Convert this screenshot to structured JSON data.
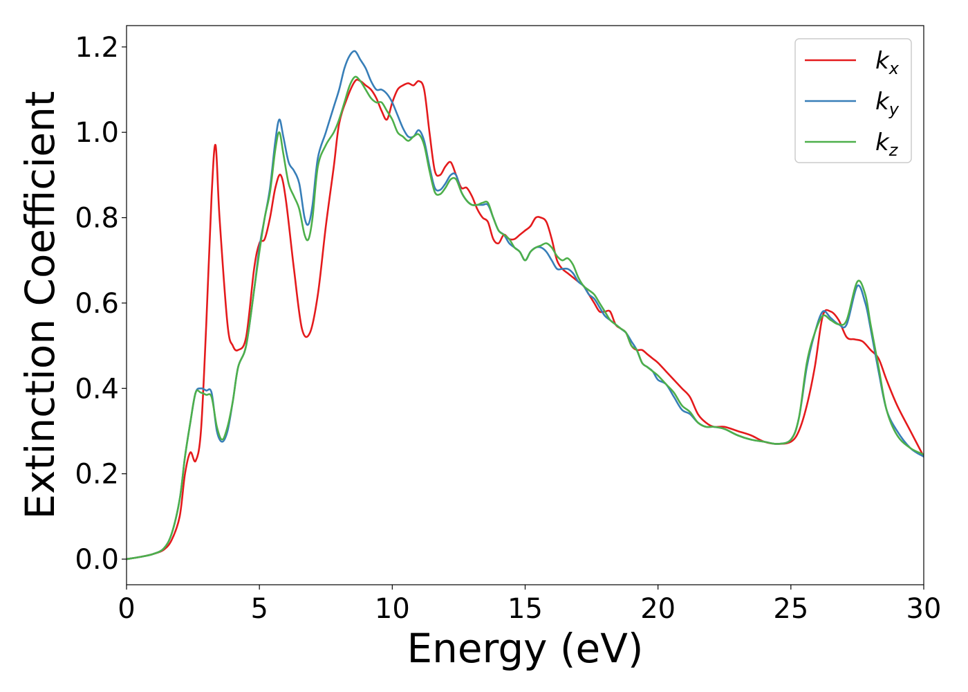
{
  "chart_data": {
    "type": "line",
    "xlabel": "Energy (eV)",
    "ylabel": "Extinction Coefficient",
    "xlim": [
      0,
      30
    ],
    "ylim": [
      -0.06,
      1.25
    ],
    "xticks": [
      0,
      5,
      10,
      15,
      20,
      25,
      30
    ],
    "yticks": [
      0.0,
      0.2,
      0.4,
      0.6,
      0.8,
      1.0,
      1.2
    ],
    "xtick_labels": [
      "0",
      "5",
      "10",
      "15",
      "20",
      "25",
      "30"
    ],
    "ytick_labels": [
      "0.0",
      "0.2",
      "0.4",
      "0.6",
      "0.8",
      "1.0",
      "1.2"
    ],
    "grid": false,
    "legend_position": "top-right",
    "series": [
      {
        "name": "k_x",
        "label_base": "k",
        "label_sub": "x",
        "color": "#e41a1c",
        "x": [
          0,
          0.5,
          1,
          1.4,
          1.7,
          2,
          2.2,
          2.4,
          2.6,
          2.8,
          3,
          3.2,
          3.35,
          3.5,
          3.8,
          4,
          4.2,
          4.5,
          4.8,
          5,
          5.2,
          5.4,
          5.6,
          5.8,
          6,
          6.3,
          6.6,
          6.9,
          7.2,
          7.5,
          7.8,
          8,
          8.3,
          8.6,
          8.8,
          9,
          9.2,
          9.4,
          9.6,
          9.8,
          10,
          10.2,
          10.4,
          10.6,
          10.8,
          11,
          11.2,
          11.4,
          11.6,
          11.8,
          12,
          12.2,
          12.4,
          12.6,
          12.8,
          13,
          13.2,
          13.4,
          13.6,
          13.8,
          14,
          14.2,
          14.4,
          14.6,
          14.8,
          15,
          15.2,
          15.4,
          15.6,
          15.8,
          16,
          16.2,
          16.4,
          16.6,
          16.8,
          17,
          17.2,
          17.4,
          17.6,
          17.8,
          18,
          18.2,
          18.4,
          18.6,
          18.8,
          19,
          19.2,
          19.4,
          19.6,
          19.8,
          20,
          20.3,
          20.6,
          20.9,
          21.2,
          21.5,
          21.8,
          22.1,
          22.5,
          23,
          23.5,
          24,
          24.5,
          25,
          25.3,
          25.6,
          25.9,
          26.2,
          26.5,
          26.8,
          27.1,
          27.4,
          27.7,
          28,
          28.3,
          28.6,
          29,
          29.5,
          30
        ],
        "y": [
          0,
          0.005,
          0.012,
          0.022,
          0.045,
          0.1,
          0.2,
          0.25,
          0.23,
          0.3,
          0.55,
          0.85,
          0.97,
          0.8,
          0.55,
          0.5,
          0.49,
          0.52,
          0.68,
          0.74,
          0.75,
          0.8,
          0.87,
          0.9,
          0.84,
          0.68,
          0.54,
          0.53,
          0.62,
          0.78,
          0.92,
          1.02,
          1.08,
          1.12,
          1.12,
          1.11,
          1.1,
          1.08,
          1.05,
          1.03,
          1.07,
          1.1,
          1.11,
          1.115,
          1.11,
          1.12,
          1.1,
          1.0,
          0.91,
          0.9,
          0.92,
          0.93,
          0.9,
          0.87,
          0.87,
          0.85,
          0.82,
          0.8,
          0.79,
          0.75,
          0.74,
          0.76,
          0.75,
          0.75,
          0.76,
          0.77,
          0.78,
          0.8,
          0.8,
          0.79,
          0.75,
          0.7,
          0.68,
          0.67,
          0.66,
          0.65,
          0.64,
          0.62,
          0.6,
          0.58,
          0.58,
          0.58,
          0.55,
          0.54,
          0.53,
          0.5,
          0.49,
          0.49,
          0.48,
          0.47,
          0.46,
          0.44,
          0.42,
          0.4,
          0.38,
          0.34,
          0.32,
          0.31,
          0.31,
          0.3,
          0.29,
          0.275,
          0.27,
          0.275,
          0.3,
          0.36,
          0.45,
          0.57,
          0.58,
          0.56,
          0.52,
          0.515,
          0.51,
          0.49,
          0.47,
          0.42,
          0.36,
          0.3,
          0.24
        ]
      },
      {
        "name": "k_y",
        "label_base": "k",
        "label_sub": "y",
        "color": "#377eb8",
        "x": [
          0,
          0.5,
          1,
          1.4,
          1.7,
          2,
          2.2,
          2.4,
          2.6,
          2.8,
          3,
          3.2,
          3.4,
          3.6,
          3.8,
          4,
          4.2,
          4.5,
          4.8,
          5,
          5.2,
          5.4,
          5.6,
          5.75,
          5.9,
          6.1,
          6.3,
          6.5,
          6.7,
          6.85,
          7,
          7.2,
          7.5,
          7.8,
          8,
          8.2,
          8.4,
          8.6,
          8.8,
          9,
          9.2,
          9.4,
          9.6,
          9.8,
          10,
          10.2,
          10.4,
          10.6,
          10.8,
          11,
          11.2,
          11.4,
          11.6,
          11.8,
          12,
          12.2,
          12.4,
          12.6,
          12.8,
          13,
          13.2,
          13.4,
          13.6,
          13.8,
          14,
          14.2,
          14.4,
          14.6,
          14.8,
          15,
          15.2,
          15.4,
          15.6,
          15.8,
          16,
          16.2,
          16.4,
          16.6,
          16.8,
          17,
          17.2,
          17.4,
          17.6,
          17.8,
          18,
          18.2,
          18.4,
          18.6,
          18.8,
          19,
          19.2,
          19.4,
          19.6,
          19.8,
          20,
          20.3,
          20.6,
          20.9,
          21.2,
          21.5,
          21.8,
          22.1,
          22.5,
          23,
          23.5,
          24,
          24.5,
          25,
          25.3,
          25.6,
          25.9,
          26.2,
          26.5,
          26.8,
          27.1,
          27.5,
          27.8,
          28,
          28.3,
          28.6,
          29,
          29.5,
          30
        ],
        "y": [
          0,
          0.005,
          0.012,
          0.025,
          0.06,
          0.14,
          0.24,
          0.32,
          0.39,
          0.4,
          0.395,
          0.39,
          0.3,
          0.275,
          0.3,
          0.37,
          0.45,
          0.5,
          0.63,
          0.73,
          0.8,
          0.87,
          0.98,
          1.03,
          0.99,
          0.93,
          0.91,
          0.88,
          0.8,
          0.785,
          0.83,
          0.94,
          1.0,
          1.06,
          1.1,
          1.15,
          1.18,
          1.19,
          1.17,
          1.15,
          1.12,
          1.1,
          1.1,
          1.09,
          1.07,
          1.04,
          1.01,
          0.99,
          0.99,
          1.005,
          0.98,
          0.92,
          0.87,
          0.865,
          0.88,
          0.9,
          0.9,
          0.86,
          0.84,
          0.83,
          0.83,
          0.83,
          0.83,
          0.8,
          0.77,
          0.76,
          0.74,
          0.73,
          0.72,
          0.7,
          0.72,
          0.73,
          0.73,
          0.72,
          0.7,
          0.68,
          0.68,
          0.68,
          0.67,
          0.65,
          0.64,
          0.62,
          0.61,
          0.59,
          0.57,
          0.56,
          0.55,
          0.54,
          0.53,
          0.51,
          0.49,
          0.46,
          0.45,
          0.44,
          0.42,
          0.41,
          0.38,
          0.35,
          0.34,
          0.32,
          0.31,
          0.31,
          0.305,
          0.29,
          0.28,
          0.275,
          0.27,
          0.28,
          0.33,
          0.45,
          0.53,
          0.58,
          0.565,
          0.55,
          0.55,
          0.64,
          0.6,
          0.54,
          0.44,
          0.35,
          0.3,
          0.26,
          0.24
        ]
      },
      {
        "name": "k_z",
        "label_base": "k",
        "label_sub": "z",
        "color": "#4daf4a",
        "x": [
          0,
          0.5,
          1,
          1.4,
          1.7,
          2,
          2.2,
          2.4,
          2.6,
          2.8,
          3,
          3.2,
          3.4,
          3.6,
          3.8,
          4,
          4.2,
          4.5,
          4.8,
          5,
          5.2,
          5.4,
          5.6,
          5.75,
          5.9,
          6.1,
          6.3,
          6.5,
          6.7,
          6.85,
          7,
          7.2,
          7.5,
          7.8,
          8,
          8.2,
          8.4,
          8.6,
          8.8,
          9,
          9.2,
          9.4,
          9.6,
          9.8,
          10,
          10.2,
          10.4,
          10.6,
          10.8,
          11,
          11.2,
          11.4,
          11.6,
          11.8,
          12,
          12.2,
          12.4,
          12.6,
          12.8,
          13,
          13.2,
          13.4,
          13.6,
          13.8,
          14,
          14.2,
          14.4,
          14.6,
          14.8,
          15,
          15.2,
          15.4,
          15.6,
          15.8,
          16,
          16.2,
          16.4,
          16.6,
          16.8,
          17,
          17.2,
          17.4,
          17.6,
          17.8,
          18,
          18.2,
          18.4,
          18.6,
          18.8,
          19,
          19.2,
          19.4,
          19.6,
          19.8,
          20,
          20.3,
          20.6,
          20.9,
          21.2,
          21.5,
          21.8,
          22.1,
          22.5,
          23,
          23.5,
          24,
          24.5,
          25,
          25.3,
          25.6,
          25.9,
          26.2,
          26.5,
          26.8,
          27.1,
          27.5,
          27.8,
          28,
          28.3,
          28.6,
          29,
          29.5,
          30
        ],
        "y": [
          0,
          0.005,
          0.012,
          0.025,
          0.06,
          0.14,
          0.24,
          0.32,
          0.39,
          0.39,
          0.385,
          0.38,
          0.31,
          0.28,
          0.31,
          0.37,
          0.45,
          0.5,
          0.63,
          0.72,
          0.8,
          0.86,
          0.96,
          1.0,
          0.95,
          0.88,
          0.85,
          0.82,
          0.76,
          0.75,
          0.8,
          0.92,
          0.97,
          1.0,
          1.03,
          1.07,
          1.11,
          1.13,
          1.12,
          1.1,
          1.08,
          1.07,
          1.07,
          1.05,
          1.03,
          1.0,
          0.99,
          0.98,
          0.99,
          0.995,
          0.97,
          0.91,
          0.86,
          0.855,
          0.87,
          0.89,
          0.89,
          0.86,
          0.84,
          0.83,
          0.83,
          0.835,
          0.835,
          0.8,
          0.77,
          0.76,
          0.75,
          0.73,
          0.72,
          0.7,
          0.72,
          0.73,
          0.735,
          0.74,
          0.73,
          0.71,
          0.7,
          0.705,
          0.69,
          0.66,
          0.64,
          0.63,
          0.62,
          0.6,
          0.58,
          0.56,
          0.55,
          0.54,
          0.53,
          0.5,
          0.49,
          0.46,
          0.45,
          0.44,
          0.43,
          0.41,
          0.39,
          0.36,
          0.345,
          0.32,
          0.31,
          0.31,
          0.305,
          0.29,
          0.28,
          0.275,
          0.27,
          0.28,
          0.33,
          0.46,
          0.53,
          0.57,
          0.56,
          0.55,
          0.56,
          0.65,
          0.62,
          0.55,
          0.45,
          0.35,
          0.29,
          0.26,
          0.245
        ]
      }
    ]
  }
}
